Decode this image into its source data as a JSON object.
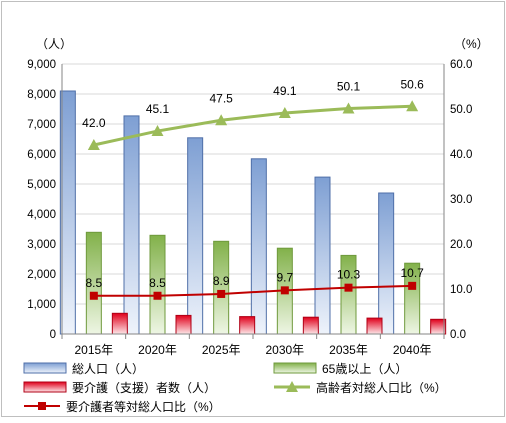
{
  "chart_data": {
    "type": "bar",
    "categories": [
      "2015年",
      "2020年",
      "2025年",
      "2030年",
      "2035年",
      "2040年"
    ],
    "left_axis": {
      "unit_label": "（人）",
      "min": 0,
      "max": 9000,
      "step": 1000,
      "tick_labels": [
        "0",
        "1,000",
        "2,000",
        "3,000",
        "4,000",
        "5,000",
        "6,000",
        "7,000",
        "8,000",
        "9,000"
      ]
    },
    "right_axis": {
      "unit_label": "（%）",
      "min": 0,
      "max": 60,
      "step": 10,
      "tick_labels": [
        "0.0",
        "10.0",
        "20.0",
        "30.0",
        "40.0",
        "50.0",
        "60.0"
      ]
    },
    "series": [
      {
        "name": "総人口（人）",
        "kind": "bar",
        "axis": "left",
        "color": "#4f81bd",
        "values": [
          8100,
          7270,
          6540,
          5840,
          5230,
          4700
        ]
      },
      {
        "name": "65歳以上（人）",
        "kind": "bar",
        "axis": "left",
        "color": "#9bbb59",
        "values": [
          3390,
          3290,
          3090,
          2860,
          2620,
          2360
        ]
      },
      {
        "name": "要介護（支援）者数（人）",
        "kind": "bar",
        "axis": "left",
        "color": "#e0001b",
        "values": [
          690,
          620,
          580,
          560,
          530,
          490
        ]
      },
      {
        "name": "高齢者対総人口比（%）",
        "kind": "line",
        "axis": "right",
        "color": "#9bbb59",
        "values": [
          42.0,
          45.1,
          47.5,
          49.1,
          50.1,
          50.6
        ],
        "labels": [
          "42.0",
          "45.1",
          "47.5",
          "49.1",
          "50.1",
          "50.6"
        ]
      },
      {
        "name": "要介護者等対総人口比（%）",
        "kind": "line",
        "axis": "right",
        "color": "#c00000",
        "values": [
          8.5,
          8.5,
          8.9,
          9.7,
          10.3,
          10.7
        ],
        "labels": [
          "8.5",
          "8.5",
          "8.9",
          "9.7",
          "10.3",
          "10.7"
        ]
      }
    ],
    "grid": true,
    "legend_position": "bottom"
  }
}
